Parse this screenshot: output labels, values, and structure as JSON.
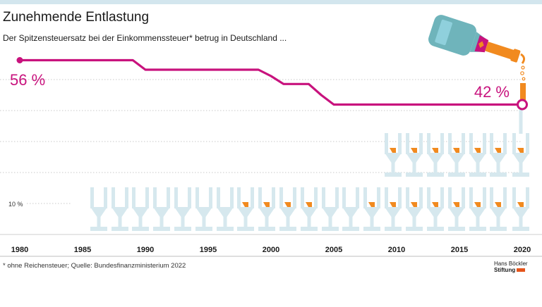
{
  "title": "Zunehmende Entlastung",
  "subtitle": "Der Spitzensteuersatz bei der Einkommenssteuer* betrug in Deutschland ...",
  "footer": "* ohne Reichensteuer; Quelle: Bundesfinanzministerium 2022",
  "logo": {
    "line1": "Hans Böckler",
    "line2": "Stiftung"
  },
  "colors": {
    "line": "#c8127d",
    "glass": "#d6e8ee",
    "fill": "#f18a1f",
    "bottle": "#6fb4bb",
    "topbar": "#d3e6ee"
  },
  "icons": [
    "champagne-glass-icon",
    "champagne-bottle-icon"
  ],
  "chart_data": {
    "type": "line",
    "title": "Zunehmende Entlastung",
    "xlabel": "",
    "ylabel": "",
    "xlim": [
      1980,
      2020
    ],
    "ylim": [
      0,
      60
    ],
    "grid": true,
    "tick_labels": [
      "1980",
      "1985",
      "1990",
      "1995",
      "2000",
      "2005",
      "2010",
      "2015",
      "2020"
    ],
    "y_tick_label": "10 %",
    "y_tick_value": 10,
    "annotations": [
      {
        "x": 1980,
        "y": 56,
        "text": "56 %"
      },
      {
        "x": 2020,
        "y": 42,
        "text": "42 %"
      }
    ],
    "series": [
      {
        "x": [
          1980,
          1989,
          1990,
          1999,
          2000,
          2001,
          2003,
          2004,
          2005,
          2020
        ],
        "y": [
          56,
          56,
          53,
          53,
          51,
          48.5,
          48.5,
          45,
          42,
          42
        ]
      }
    ]
  }
}
